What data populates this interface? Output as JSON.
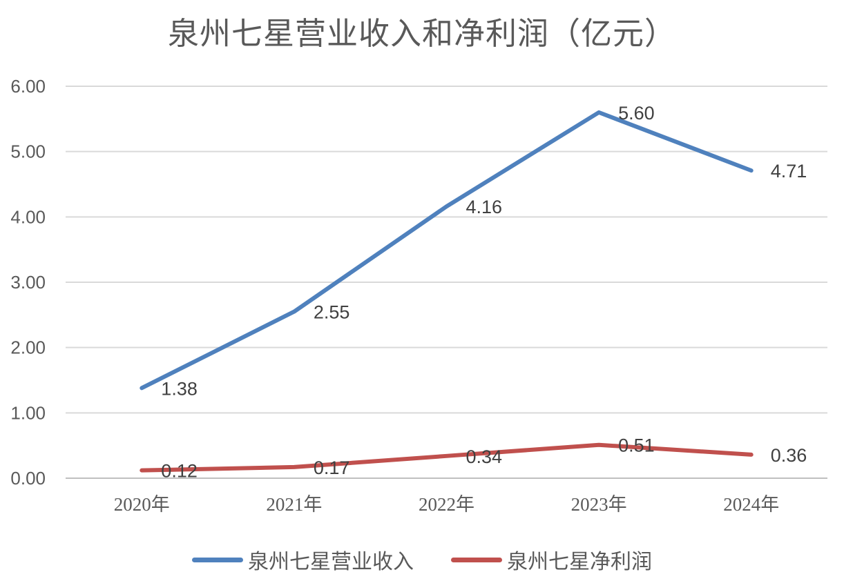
{
  "chart_data": {
    "type": "line",
    "title": "泉州七星营业收入和净利润（亿元）",
    "categories": [
      "2020年",
      "2021年",
      "2022年",
      "2023年",
      "2024年"
    ],
    "series": [
      {
        "name": "泉州七星营业收入",
        "color": "#4F81BD",
        "values": [
          1.38,
          2.55,
          4.16,
          5.6,
          4.71
        ]
      },
      {
        "name": "泉州七星净利润",
        "color": "#C0504D",
        "values": [
          0.12,
          0.17,
          0.34,
          0.51,
          0.36
        ]
      }
    ],
    "xlabel": "",
    "ylabel": "",
    "ylim": [
      0,
      6
    ],
    "y_ticks": [
      "0.00",
      "1.00",
      "2.00",
      "3.00",
      "4.00",
      "5.00",
      "6.00"
    ],
    "label_format_decimals": 2,
    "grid": true,
    "legend_position": "bottom",
    "gridline_color": "#D9D9D9",
    "axis_line_color": "#BFBFBF",
    "text_color": "#595959",
    "data_label_color": "#404040"
  }
}
